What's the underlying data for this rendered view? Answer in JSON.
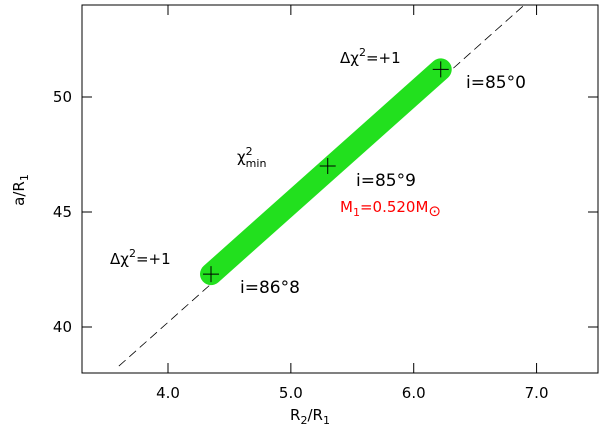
{
  "chart_data": {
    "type": "scatter",
    "x_label": {
      "base": "R",
      "sub": "2",
      "rest": "/R",
      "sub2": "1"
    },
    "y_label": {
      "base": "a/R",
      "sub": "1"
    },
    "xlim": [
      3.3,
      7.5
    ],
    "ylim": [
      38,
      54
    ],
    "xticks": [
      {
        "value": 4,
        "label": "4.0"
      },
      {
        "value": 5,
        "label": "5.0"
      },
      {
        "value": 6,
        "label": "6.0"
      },
      {
        "value": 7,
        "label": "7.0"
      }
    ],
    "yticks": [
      40,
      45,
      50
    ],
    "series": [
      {
        "style": "dashed-line",
        "color": "#000000",
        "x": [
          3.6,
          6.9
        ],
        "values": [
          38.3,
          54
        ]
      },
      {
        "style": "band",
        "color": "#22e01e",
        "x": [
          4.35,
          6.22
        ],
        "values": [
          42.3,
          51.2
        ]
      },
      {
        "style": "plus",
        "color": "#000000",
        "x": [
          4.35,
          5.3,
          6.22
        ],
        "values": [
          42.3,
          47.0,
          51.2
        ]
      }
    ],
    "annotations": [
      {
        "base": "Δχ",
        "sup": "2",
        "rest": "=+1"
      },
      {
        "text": "i=85°0"
      },
      {
        "base": "χ",
        "sup": "2",
        "sub": "min"
      },
      {
        "text": "i=85°9"
      },
      {
        "base": "M",
        "sub": "1",
        "rest": "=0.520M",
        "sub2": "⊙",
        "color": "#ff0000"
      },
      {
        "base": "Δχ",
        "sup": "2",
        "rest": "=+1"
      },
      {
        "text": "i=86°8"
      }
    ]
  }
}
